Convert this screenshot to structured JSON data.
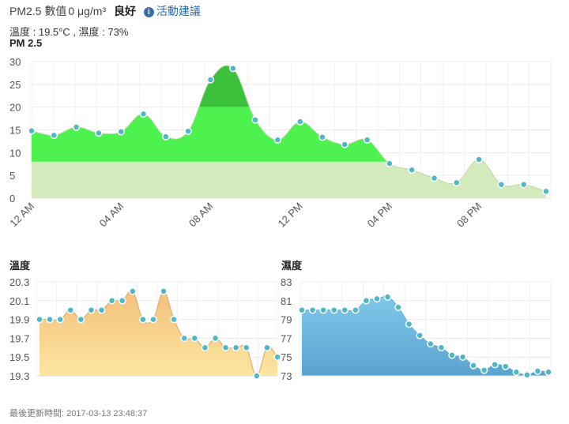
{
  "header": {
    "label": "PM2.5",
    "value_label": "數值",
    "value": "0 μg/m³",
    "level": "良好",
    "info_icon": "info-circle-icon",
    "link_text": "活動建議",
    "link_color": "#2a6fb5"
  },
  "conditions": "溫度 : 19.5°C , 濕度 : 73%",
  "footer": "最後更新時間: 2017-03-13 23:48:37",
  "chart_data": [
    {
      "id": "pm25",
      "type": "area",
      "title": "PM 2.5",
      "ylim": [
        0,
        30
      ],
      "yticks": [
        0,
        5,
        10,
        15,
        20,
        25,
        30
      ],
      "xticks": [
        "12 AM",
        "04 AM",
        "08 AM",
        "12 PM",
        "04 PM",
        "08 PM"
      ],
      "grid": true,
      "legend": "none",
      "colors": {
        "high": "#3cc13c",
        "mid": "#4ef24e",
        "low": "#d3eabc",
        "point": "#4fb8c4"
      },
      "series": [
        {
          "values": [
            14.8,
            13.8,
            15.6,
            14.3,
            14.6,
            18.5,
            13.5,
            14.7,
            26,
            28.5,
            17.2,
            12.8,
            16.8,
            13.4,
            11.8,
            12.8,
            7.6,
            6.2,
            4.4,
            3.4,
            8.5,
            3,
            3,
            1.5
          ]
        }
      ]
    },
    {
      "id": "temperature",
      "type": "area",
      "title": "溫度",
      "ylim": [
        19.3,
        20.3
      ],
      "yticks": [
        "19.3",
        "19.5",
        "19.7",
        "19.9",
        "20.1",
        "20.3"
      ],
      "grid": true,
      "legend": "none",
      "colors": {
        "fill_top": "#f3c07c",
        "fill_bottom": "#fbe6a0",
        "point": "#4fb8c4"
      },
      "series": [
        {
          "values": [
            19.9,
            19.9,
            19.9,
            20.0,
            19.9,
            20.0,
            20.0,
            20.1,
            20.1,
            20.2,
            19.9,
            19.9,
            20.2,
            19.9,
            19.7,
            19.7,
            19.6,
            19.7,
            19.6,
            19.6,
            19.6,
            19.3,
            19.6,
            19.5
          ]
        }
      ]
    },
    {
      "id": "humidity",
      "type": "area",
      "title": "濕度",
      "ylim": [
        73,
        83
      ],
      "yticks": [
        "73",
        "75",
        "77",
        "79",
        "81",
        "83"
      ],
      "grid": true,
      "legend": "none",
      "colors": {
        "fill_top": "#7fc8ea",
        "fill_bottom": "#5aa3cf",
        "point": "#4fb8c4"
      },
      "series": [
        {
          "values": [
            80,
            80,
            80,
            80,
            80,
            80,
            81,
            81.2,
            81.4,
            80.3,
            78.5,
            77.3,
            76.4,
            76,
            75.2,
            75,
            74.1,
            73.6,
            74.2,
            74,
            73.4,
            73.1,
            73.5,
            73.4
          ]
        }
      ]
    }
  ]
}
